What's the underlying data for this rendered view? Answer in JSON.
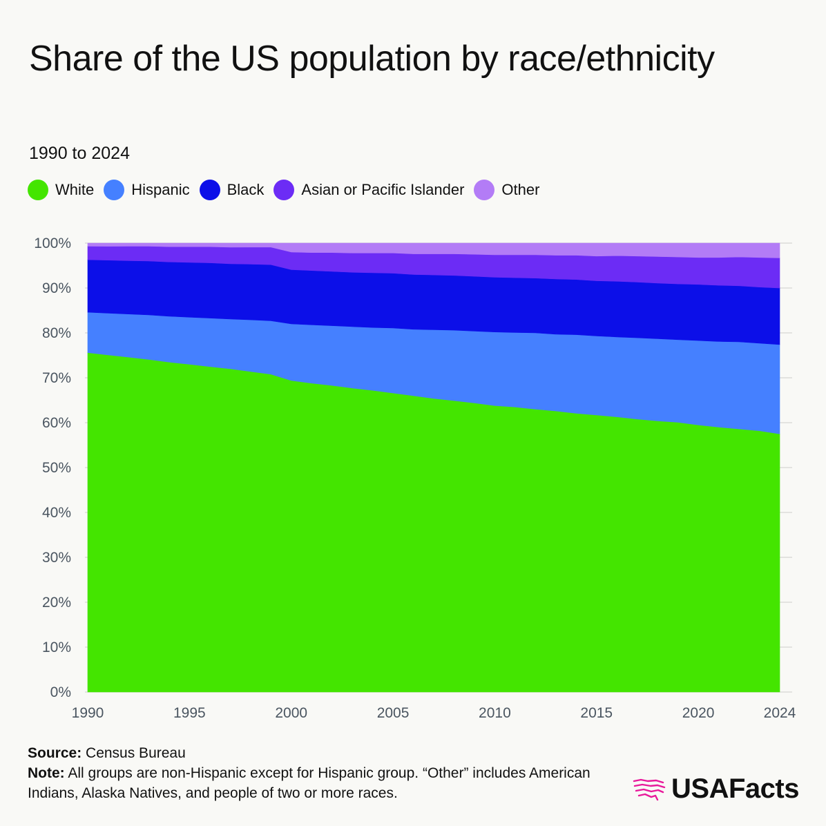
{
  "header": {
    "title": "Share of the US population by race/ethnicity",
    "subtitle": "1990 to 2024"
  },
  "legend": [
    {
      "label": "White",
      "color": "#44e500"
    },
    {
      "label": "Hispanic",
      "color": "#4580ff"
    },
    {
      "label": "Black",
      "color": "#0c0fe8"
    },
    {
      "label": "Asian or Pacific Islander",
      "color": "#6c2cf5"
    },
    {
      "label": "Other",
      "color": "#b37cf6"
    }
  ],
  "chart_data": {
    "type": "area",
    "stacked": true,
    "x": [
      1990,
      1991,
      1992,
      1993,
      1994,
      1995,
      1996,
      1997,
      1998,
      1999,
      2000,
      2001,
      2002,
      2003,
      2004,
      2005,
      2006,
      2007,
      2008,
      2009,
      2010,
      2011,
      2012,
      2013,
      2014,
      2015,
      2016,
      2017,
      2018,
      2019,
      2020,
      2021,
      2022,
      2023,
      2024
    ],
    "series": [
      {
        "name": "White",
        "color": "#44e500",
        "values": [
          75.6,
          75.1,
          74.6,
          74.1,
          73.5,
          73.0,
          72.5,
          72.0,
          71.4,
          70.8,
          69.4,
          68.8,
          68.3,
          67.7,
          67.2,
          66.6,
          66.0,
          65.4,
          64.9,
          64.4,
          63.8,
          63.5,
          63.0,
          62.6,
          62.1,
          61.7,
          61.3,
          60.8,
          60.4,
          60.1,
          59.5,
          59.0,
          58.6,
          58.2,
          57.5
        ]
      },
      {
        "name": "Hispanic",
        "color": "#4580ff",
        "values": [
          9.0,
          9.3,
          9.6,
          9.9,
          10.2,
          10.5,
          10.8,
          11.1,
          11.5,
          11.9,
          12.6,
          13.0,
          13.3,
          13.7,
          14.0,
          14.5,
          14.8,
          15.3,
          15.7,
          16.0,
          16.4,
          16.6,
          17.0,
          17.1,
          17.5,
          17.6,
          17.8,
          18.1,
          18.3,
          18.4,
          18.8,
          19.1,
          19.4,
          19.5,
          19.9
        ]
      },
      {
        "name": "Black",
        "color": "#0c0fe8",
        "values": [
          11.7,
          11.8,
          11.9,
          12.0,
          12.1,
          12.2,
          12.3,
          12.3,
          12.4,
          12.5,
          12.1,
          12.1,
          12.1,
          12.1,
          12.2,
          12.2,
          12.2,
          12.2,
          12.2,
          12.2,
          12.2,
          12.2,
          12.2,
          12.3,
          12.3,
          12.3,
          12.4,
          12.4,
          12.4,
          12.4,
          12.5,
          12.5,
          12.5,
          12.5,
          12.6
        ]
      },
      {
        "name": "Asian or Pacific Islander",
        "color": "#6c2cf5",
        "values": [
          3.0,
          3.1,
          3.2,
          3.3,
          3.4,
          3.5,
          3.6,
          3.7,
          3.8,
          3.9,
          3.9,
          4.0,
          4.2,
          4.3,
          4.4,
          4.5,
          4.6,
          4.7,
          4.8,
          4.9,
          5.0,
          5.1,
          5.2,
          5.3,
          5.4,
          5.5,
          5.7,
          5.8,
          5.9,
          6.0,
          6.0,
          6.2,
          6.4,
          6.6,
          6.7
        ]
      },
      {
        "name": "Other",
        "color": "#b37cf6",
        "values": [
          0.7,
          0.7,
          0.7,
          0.7,
          0.8,
          0.8,
          0.8,
          0.9,
          0.9,
          0.9,
          2.0,
          2.1,
          2.1,
          2.2,
          2.2,
          2.2,
          2.4,
          2.4,
          2.4,
          2.5,
          2.6,
          2.6,
          2.6,
          2.7,
          2.7,
          2.9,
          2.8,
          2.9,
          3.0,
          3.1,
          3.2,
          3.2,
          3.1,
          3.2,
          3.3
        ]
      }
    ],
    "xlim": [
      1990,
      2024
    ],
    "ylim": [
      0,
      100
    ],
    "xticks": [
      "1990",
      "1995",
      "2000",
      "2005",
      "2010",
      "2015",
      "2020",
      "2024"
    ],
    "yticks": [
      "0%",
      "10%",
      "20%",
      "30%",
      "40%",
      "50%",
      "60%",
      "70%",
      "80%",
      "90%",
      "100%"
    ],
    "grid": true,
    "legend_position": "top-left"
  },
  "footer": {
    "source_label": "Source:",
    "source_text": " Census Bureau",
    "note_label": "Note:",
    "note_text": " All groups are non-Hispanic except for Hispanic group. “Other” includes American Indians, Alaska Natives, and people of two or more races."
  },
  "brand": {
    "name": "USAFacts",
    "logo_color": "#e8189a"
  }
}
